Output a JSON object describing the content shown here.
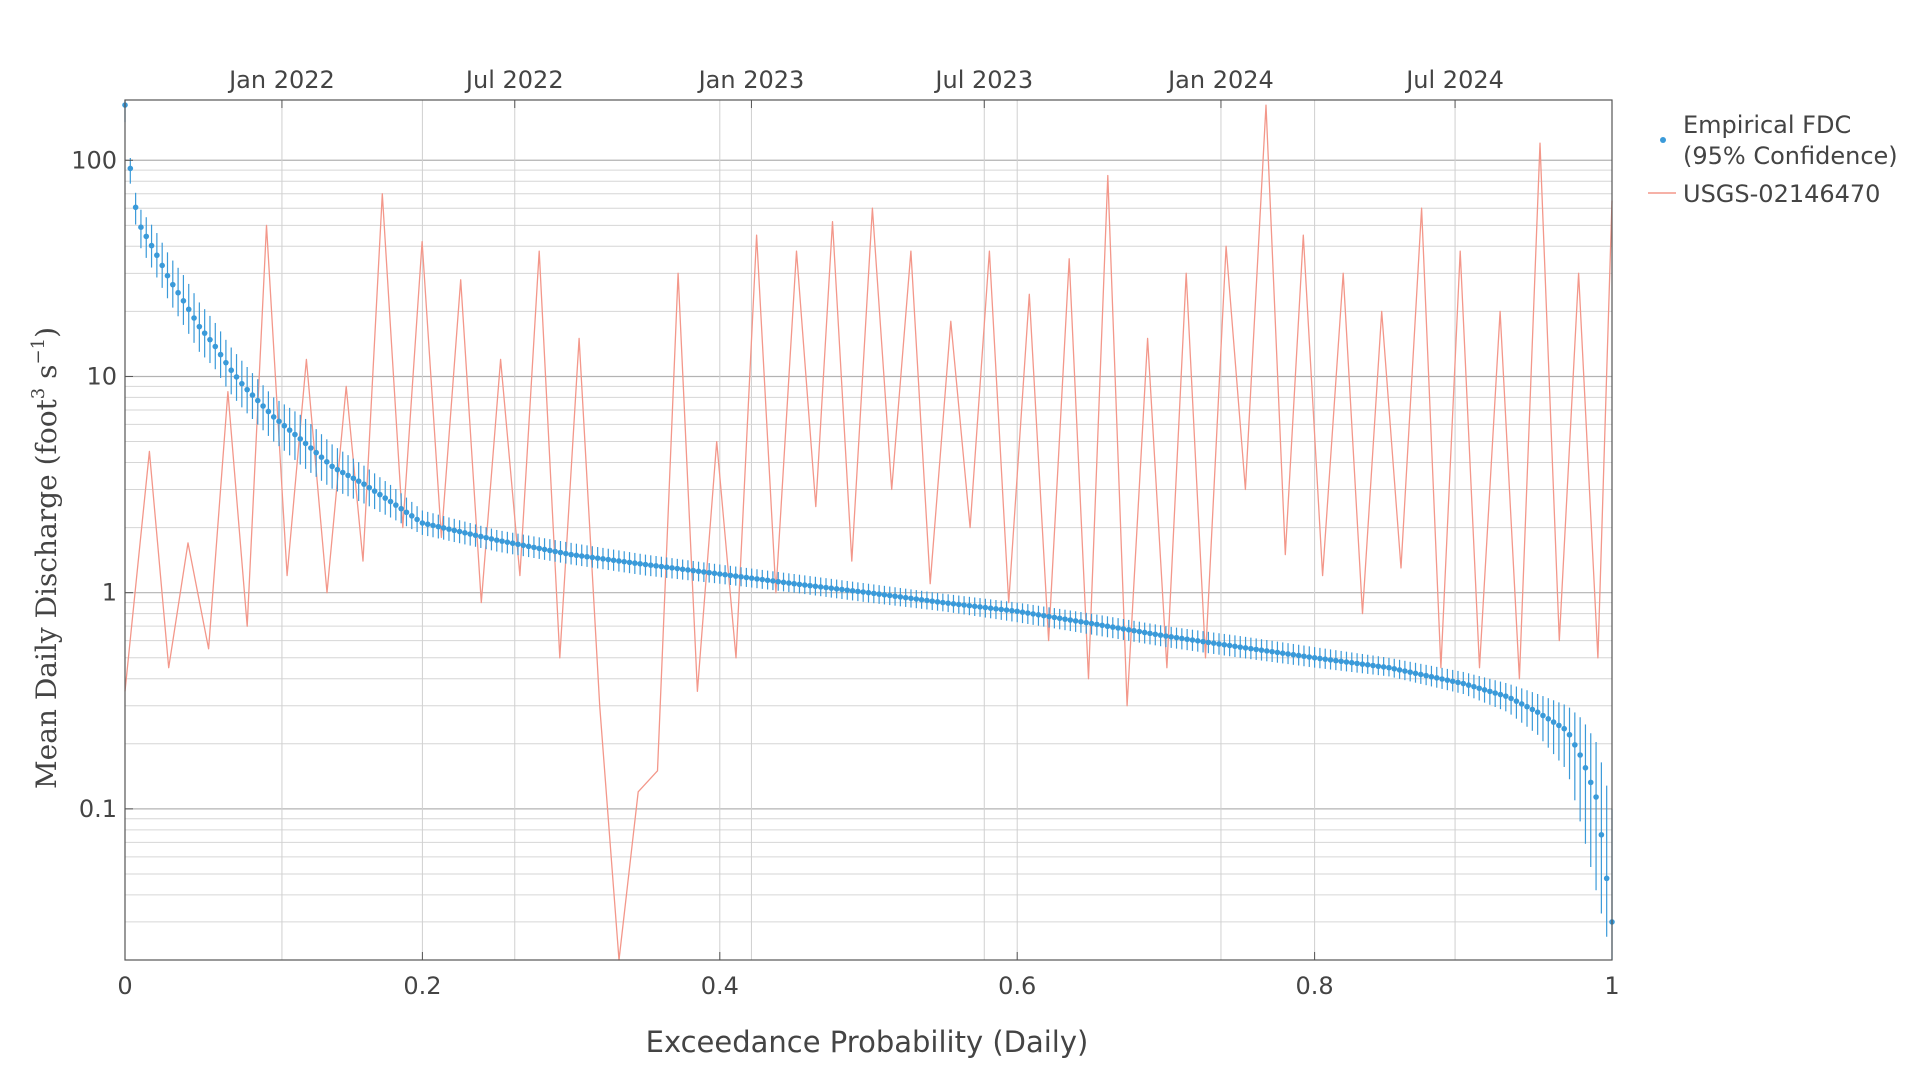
{
  "chart_data": {
    "type": "scatter",
    "xlabel": "Exceedance Probability (Daily)",
    "ylabel": {
      "prefix": "Mean Daily Discharge (foot",
      "sup1": "3",
      "mid": " s",
      "sup2": "−1",
      "suffix": ")"
    },
    "xlim": [
      0,
      1
    ],
    "ylim": [
      0.02,
      190
    ],
    "y_scale": "log",
    "grid": true,
    "legend_position": "top-right-outside",
    "bottom_xticks": [
      {
        "value": 0,
        "label": "0"
      },
      {
        "value": 0.2,
        "label": "0.2"
      },
      {
        "value": 0.4,
        "label": "0.4"
      },
      {
        "value": 0.6,
        "label": "0.6"
      },
      {
        "value": 0.8,
        "label": "0.8"
      },
      {
        "value": 1,
        "label": "1"
      }
    ],
    "top_xticks": [
      {
        "date": "2022-01-01",
        "label": "Jan 2022"
      },
      {
        "date": "2022-07-01",
        "label": "Jul 2022"
      },
      {
        "date": "2023-01-01",
        "label": "Jan 2023"
      },
      {
        "date": "2023-07-01",
        "label": "Jul 2023"
      },
      {
        "date": "2024-01-01",
        "label": "Jan 2024"
      },
      {
        "date": "2024-07-01",
        "label": "Jul 2024"
      }
    ],
    "top_axis_range": [
      "2021-09-01",
      "2024-10-31"
    ],
    "yticks": [
      {
        "value": 0.1,
        "label": "0.1"
      },
      {
        "value": 1,
        "label": "1"
      },
      {
        "value": 10,
        "label": "10"
      },
      {
        "value": 100,
        "label": "100"
      }
    ],
    "series": [
      {
        "name": "Empirical FDC\n(95% Confidence)",
        "kind": "points_with_error_bars",
        "color": "#3a9ad9",
        "x": [
          0,
          0.005,
          0.01,
          0.02,
          0.03,
          0.04,
          0.05,
          0.06,
          0.07,
          0.08,
          0.1,
          0.12,
          0.14,
          0.16,
          0.18,
          0.2,
          0.25,
          0.3,
          0.35,
          0.4,
          0.45,
          0.5,
          0.55,
          0.6,
          0.65,
          0.7,
          0.75,
          0.8,
          0.85,
          0.9,
          0.93,
          0.95,
          0.97,
          0.98,
          0.99,
          1.0
        ],
        "y": [
          180,
          70,
          50,
          38,
          28,
          22,
          17,
          14,
          11,
          9,
          6.5,
          5,
          3.8,
          3.2,
          2.6,
          2.1,
          1.75,
          1.5,
          1.35,
          1.22,
          1.1,
          1.0,
          0.9,
          0.82,
          0.72,
          0.63,
          0.56,
          0.5,
          0.45,
          0.38,
          0.33,
          0.28,
          0.23,
          0.17,
          0.11,
          0.03
        ],
        "y_lower": [
          150,
          60,
          40,
          30,
          22,
          17,
          13,
          11,
          8.5,
          7,
          5,
          3.8,
          3,
          2.6,
          2.2,
          1.85,
          1.55,
          1.35,
          1.2,
          1.1,
          1.0,
          0.9,
          0.82,
          0.73,
          0.64,
          0.56,
          0.5,
          0.45,
          0.41,
          0.34,
          0.28,
          0.22,
          0.15,
          0.08,
          0.04,
          0.02
        ],
        "y_upper": [
          190,
          80,
          60,
          48,
          36,
          29,
          22,
          18,
          14,
          11.5,
          8,
          6.5,
          4.8,
          3.9,
          3.1,
          2.4,
          1.95,
          1.7,
          1.5,
          1.35,
          1.22,
          1.1,
          0.99,
          0.9,
          0.8,
          0.7,
          0.63,
          0.56,
          0.5,
          0.43,
          0.38,
          0.34,
          0.3,
          0.26,
          0.2,
          0.1
        ]
      },
      {
        "name": "USGS-02146470",
        "kind": "line",
        "color": "#f3978a",
        "x": [
          "2021-09-01",
          "2021-09-20",
          "2021-10-05",
          "2021-10-20",
          "2021-11-05",
          "2021-11-20",
          "2021-12-05",
          "2021-12-20",
          "2022-01-05",
          "2022-01-20",
          "2022-02-05",
          "2022-02-20",
          "2022-03-05",
          "2022-03-20",
          "2022-04-05",
          "2022-04-20",
          "2022-05-05",
          "2022-05-20",
          "2022-06-05",
          "2022-06-20",
          "2022-07-05",
          "2022-07-20",
          "2022-08-05",
          "2022-08-20",
          "2022-09-05",
          "2022-09-20",
          "2022-10-05",
          "2022-10-20",
          "2022-11-05",
          "2022-11-20",
          "2022-12-05",
          "2022-12-20",
          "2023-01-05",
          "2023-01-20",
          "2023-02-05",
          "2023-02-20",
          "2023-03-05",
          "2023-03-20",
          "2023-04-05",
          "2023-04-20",
          "2023-05-05",
          "2023-05-20",
          "2023-06-05",
          "2023-06-20",
          "2023-07-05",
          "2023-07-20",
          "2023-08-05",
          "2023-08-20",
          "2023-09-05",
          "2023-09-20",
          "2023-10-05",
          "2023-10-20",
          "2023-11-05",
          "2023-11-20",
          "2023-12-05",
          "2023-12-20",
          "2024-01-05",
          "2024-01-20",
          "2024-02-05",
          "2024-02-20",
          "2024-03-05",
          "2024-03-20",
          "2024-04-05",
          "2024-04-20",
          "2024-05-05",
          "2024-05-20",
          "2024-06-05",
          "2024-06-20",
          "2024-07-05",
          "2024-07-20",
          "2024-08-05",
          "2024-08-20",
          "2024-09-05",
          "2024-09-20",
          "2024-10-05",
          "2024-10-20",
          "2024-10-31"
        ],
        "y": [
          0.35,
          4.5,
          0.45,
          1.7,
          0.55,
          8.5,
          0.7,
          50,
          1.2,
          12,
          1.0,
          9,
          1.4,
          70,
          2.0,
          42,
          1.8,
          28,
          0.9,
          12,
          1.2,
          38,
          0.5,
          15,
          0.3,
          0.02,
          0.12,
          0.15,
          30,
          0.35,
          5,
          0.5,
          45,
          1.0,
          38,
          2.5,
          52,
          1.4,
          60,
          3.0,
          38,
          1.1,
          18,
          2.0,
          38,
          0.9,
          24,
          0.6,
          35,
          0.4,
          85,
          0.3,
          15,
          0.45,
          30,
          0.5,
          40,
          3.0,
          180,
          1.5,
          45,
          1.2,
          30,
          0.8,
          20,
          1.3,
          60,
          0.45,
          38,
          0.45,
          20,
          0.4,
          120,
          0.6,
          30,
          0.5,
          65
        ]
      }
    ]
  }
}
